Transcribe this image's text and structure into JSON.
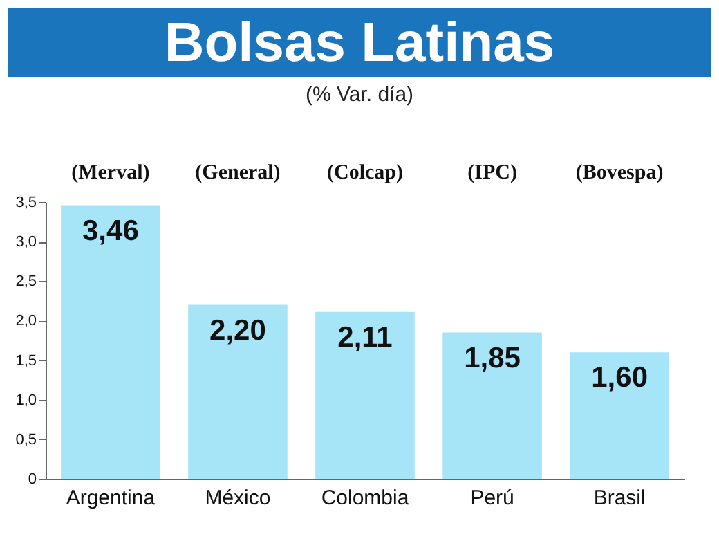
{
  "chart_data": {
    "type": "bar",
    "title": "Bolsas Latinas",
    "subtitle": "(% Var. día)",
    "categories": [
      "Argentina",
      "México",
      "Colombia",
      "Perú",
      "Brasil"
    ],
    "values": [
      3.46,
      2.2,
      2.11,
      1.85,
      1.6
    ],
    "value_labels": [
      "3,46",
      "2,20",
      "2,11",
      "1,85",
      "1,60"
    ],
    "color": "#a6e4f7",
    "ylim": [
      0,
      3.5
    ],
    "yticks": [
      0,
      {
        "value": 0.5,
        "label": "0,5"
      },
      {
        "value": 1,
        "label": "1,0"
      },
      {
        "value": 1.5,
        "label": "1,5"
      },
      {
        "value": 2,
        "label": "2,0"
      },
      {
        "value": 2.5,
        "label": "2,5"
      },
      {
        "value": 3,
        "label": "3,0"
      },
      {
        "value": 3.5,
        "label": "3,5"
      }
    ],
    "annotations": [
      "(Merval)",
      "(General)",
      "(Colcap)",
      "(IPC)",
      "(Bovespa)"
    ],
    "grid": false
  }
}
